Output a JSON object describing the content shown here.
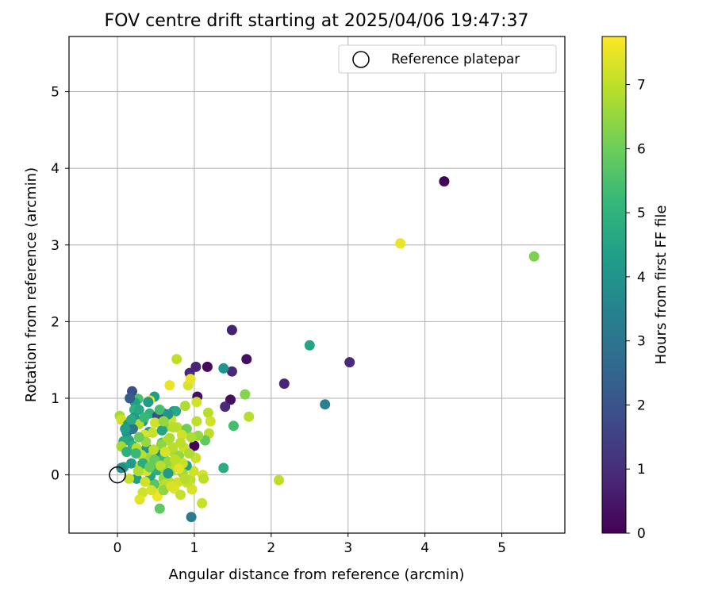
{
  "chart_data": {
    "type": "scatter",
    "title": "FOV centre drift starting at 2025/04/06 19:47:37",
    "xlabel": "Angular distance from reference (arcmin)",
    "ylabel": "Rotation from reference (arcmin)",
    "xlim": [
      -0.63,
      5.82
    ],
    "ylim": [
      -0.76,
      5.72
    ],
    "xticks": [
      0,
      1,
      2,
      3,
      4,
      5
    ],
    "yticks": [
      0,
      1,
      2,
      3,
      4,
      5
    ],
    "grid": true,
    "legend": {
      "position": "top-right",
      "entries": [
        "Reference platepar"
      ]
    },
    "reference_point": {
      "name": "Reference platepar",
      "x": 0,
      "y": 0
    },
    "colorbar": {
      "label": "Hours from first FF file",
      "colormap": "viridis",
      "range": [
        0,
        7.75
      ],
      "ticks": [
        0,
        1,
        2,
        3,
        4,
        5,
        6,
        7
      ]
    },
    "points": [
      [
        4.25,
        3.83,
        0.1
      ],
      [
        3.68,
        3.02,
        7.5
      ],
      [
        5.42,
        2.85,
        6.2
      ],
      [
        1.49,
        1.89,
        0.7
      ],
      [
        1.68,
        1.51,
        0.3
      ],
      [
        2.5,
        1.69,
        4.5
      ],
      [
        3.02,
        1.47,
        0.9
      ],
      [
        2.17,
        1.19,
        0.8
      ],
      [
        2.7,
        0.92,
        3.4
      ],
      [
        2.1,
        -0.07,
        7.0
      ],
      [
        1.49,
        1.35,
        0.9
      ],
      [
        1.38,
        1.39,
        4.0
      ],
      [
        1.47,
        0.98,
        0.3
      ],
      [
        1.4,
        0.89,
        0.9
      ],
      [
        1.66,
        1.05,
        6.3
      ],
      [
        1.71,
        0.76,
        6.9
      ],
      [
        1.51,
        0.64,
        5.4
      ],
      [
        1.38,
        0.09,
        4.8
      ],
      [
        1.17,
        1.41,
        0.2
      ],
      [
        1.02,
        1.41,
        0.8
      ],
      [
        0.94,
        1.33,
        0.9
      ],
      [
        0.77,
        1.51,
        7.0
      ],
      [
        0.92,
        1.17,
        7.3
      ],
      [
        0.95,
        1.25,
        7.5
      ],
      [
        1.04,
        1.02,
        0.3
      ],
      [
        1.03,
        0.95,
        7.2
      ],
      [
        1.18,
        0.81,
        6.9
      ],
      [
        1.21,
        0.7,
        7.2
      ],
      [
        1.19,
        0.54,
        7.0
      ],
      [
        1.14,
        0.45,
        5.8
      ],
      [
        1.03,
        0.7,
        7.0
      ],
      [
        1.05,
        0.51,
        6.5
      ],
      [
        1.0,
        0.38,
        0.1
      ],
      [
        1.02,
        0.22,
        7.1
      ],
      [
        1.11,
        0.0,
        7.3
      ],
      [
        1.12,
        -0.05,
        7.0
      ],
      [
        1.1,
        -0.37,
        7.1
      ],
      [
        0.96,
        -0.55,
        3.2
      ],
      [
        0.97,
        -0.19,
        7.3
      ],
      [
        0.95,
        -0.06,
        7.0
      ],
      [
        0.99,
        0.05,
        7.2
      ],
      [
        0.68,
        1.17,
        7.5
      ],
      [
        0.88,
        0.9,
        6.8
      ],
      [
        0.73,
        0.83,
        4.1
      ],
      [
        0.76,
        0.83,
        4.6
      ],
      [
        0.78,
        0.62,
        7.0
      ],
      [
        0.7,
        0.72,
        7.2
      ],
      [
        0.6,
        0.8,
        2.0
      ],
      [
        0.62,
        0.62,
        6.2
      ],
      [
        0.58,
        0.42,
        5.7
      ],
      [
        0.65,
        0.45,
        7.0
      ],
      [
        0.48,
        1.02,
        4.3
      ],
      [
        0.42,
        0.97,
        7.5
      ],
      [
        0.4,
        0.95,
        4.2
      ],
      [
        0.27,
        0.99,
        5.5
      ],
      [
        0.23,
        0.94,
        4.4
      ],
      [
        0.22,
        0.85,
        5.0
      ],
      [
        0.19,
        1.09,
        1.8
      ],
      [
        0.16,
        1.0,
        2.2
      ],
      [
        0.22,
        0.75,
        4.2
      ],
      [
        0.33,
        0.7,
        4.0
      ],
      [
        0.28,
        0.66,
        6.8
      ],
      [
        0.41,
        0.56,
        4.5
      ],
      [
        0.46,
        0.55,
        7.1
      ],
      [
        0.35,
        0.52,
        7.3
      ],
      [
        0.12,
        0.55,
        3.8
      ],
      [
        0.15,
        0.45,
        4.5
      ],
      [
        0.08,
        0.44,
        4.7
      ],
      [
        0.05,
        0.37,
        6.7
      ],
      [
        0.03,
        0.77,
        6.7
      ],
      [
        0.05,
        0.72,
        7.2
      ],
      [
        0.14,
        0.66,
        4.0
      ],
      [
        0.2,
        0.6,
        3.0
      ],
      [
        0.2,
        0.38,
        5.0
      ],
      [
        0.25,
        0.35,
        6.9
      ],
      [
        0.38,
        0.35,
        4.0
      ],
      [
        0.5,
        0.3,
        7.0
      ],
      [
        0.55,
        0.26,
        3.5
      ],
      [
        0.6,
        0.22,
        5.2
      ],
      [
        0.66,
        0.17,
        6.5
      ],
      [
        0.72,
        0.3,
        6.8
      ],
      [
        0.8,
        0.25,
        6.5
      ],
      [
        0.86,
        0.36,
        7.1
      ],
      [
        0.9,
        0.12,
        4.4
      ],
      [
        0.85,
        0.02,
        6.6
      ],
      [
        0.78,
        -0.1,
        7.2
      ],
      [
        0.74,
        -0.18,
        7.4
      ],
      [
        0.82,
        -0.26,
        7.1
      ],
      [
        0.67,
        -0.09,
        7.0
      ],
      [
        0.6,
        -0.05,
        6.5
      ],
      [
        0.54,
        -0.17,
        7.4
      ],
      [
        0.52,
        -0.28,
        7.6
      ],
      [
        0.55,
        -0.44,
        5.8
      ],
      [
        0.48,
        -0.12,
        5.7
      ],
      [
        0.43,
        -0.01,
        4.5
      ],
      [
        0.38,
        0.05,
        7.3
      ],
      [
        0.33,
        -0.23,
        7.2
      ],
      [
        0.29,
        -0.32,
        7.4
      ],
      [
        0.25,
        -0.05,
        4.3
      ],
      [
        0.18,
        0.15,
        4.2
      ],
      [
        0.15,
        -0.05,
        7.1
      ],
      [
        0.08,
        0.1,
        4.4
      ],
      [
        0.05,
        0.09,
        3.8
      ],
      [
        0.12,
        0.3,
        4.9
      ],
      [
        0.3,
        0.12,
        6.9
      ],
      [
        0.45,
        0.1,
        5.6
      ],
      [
        0.52,
        0.06,
        4.9
      ],
      [
        0.62,
        0.07,
        6.4
      ],
      [
        0.7,
        0.05,
        6.8
      ],
      [
        0.77,
        0.12,
        7.0
      ],
      [
        0.4,
        0.22,
        6.6
      ],
      [
        0.48,
        0.2,
        5.9
      ],
      [
        0.57,
        0.39,
        6.4
      ],
      [
        0.68,
        0.48,
        6.8
      ],
      [
        0.72,
        0.36,
        6.9
      ],
      [
        0.58,
        0.58,
        4.5
      ],
      [
        0.42,
        0.8,
        5.0
      ],
      [
        0.52,
        0.77,
        1.8
      ],
      [
        0.55,
        0.85,
        5.4
      ],
      [
        0.49,
        0.68,
        7.2
      ],
      [
        0.37,
        0.43,
        6.5
      ],
      [
        0.28,
        0.49,
        6.0
      ],
      [
        0.31,
        0.26,
        7.0
      ],
      [
        0.36,
        -0.09,
        7.2
      ],
      [
        0.44,
        -0.2,
        7.3
      ],
      [
        0.62,
        -0.12,
        7.0
      ],
      [
        0.66,
        0.02,
        4.2
      ],
      [
        0.9,
        0.6,
        6.0
      ],
      [
        0.96,
        0.49,
        6.8
      ],
      [
        0.84,
        0.52,
        7.2
      ],
      [
        0.72,
        0.62,
        6.9
      ],
      [
        0.66,
        0.79,
        4.0
      ],
      [
        0.6,
        0.7,
        6.5
      ],
      [
        0.56,
        0.12,
        6.9
      ],
      [
        0.47,
        0.33,
        7.0
      ],
      [
        0.85,
        0.15,
        7.1
      ],
      [
        0.93,
        0.28,
        6.8
      ],
      [
        0.75,
        0.2,
        7.0
      ],
      [
        0.62,
        0.3,
        7.3
      ],
      [
        0.82,
        0.42,
        7.0
      ],
      [
        0.28,
        0.85,
        4.6
      ],
      [
        0.35,
        0.75,
        5.2
      ],
      [
        0.18,
        0.72,
        4.7
      ],
      [
        0.1,
        0.6,
        4.3
      ],
      [
        0.24,
        0.28,
        5.2
      ],
      [
        0.33,
        0.15,
        4.8
      ],
      [
        0.42,
        0.1,
        5.9
      ],
      [
        0.27,
        0.05,
        6.8
      ],
      [
        0.6,
        -0.2,
        6.4
      ],
      [
        0.7,
        -0.15,
        7.3
      ],
      [
        0.9,
        -0.1,
        7.1
      ],
      [
        0.8,
        0.08,
        7.4
      ],
      [
        0.88,
        -0.05,
        6.9
      ]
    ]
  }
}
